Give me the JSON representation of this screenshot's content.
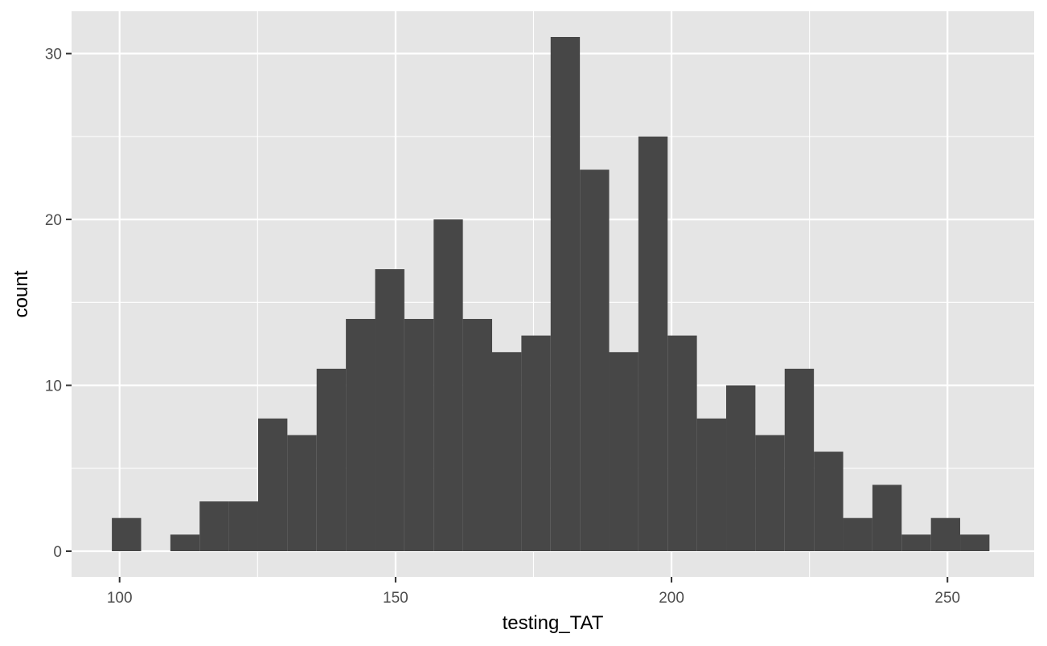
{
  "chart_data": {
    "type": "bar",
    "subtype": "histogram",
    "xlabel": "testing_TAT",
    "ylabel": "count",
    "xlim": [
      91.3,
      265.7
    ],
    "ylim": [
      -1.55,
      32.55
    ],
    "x_ticks": [
      100,
      150,
      200,
      250
    ],
    "y_ticks": [
      0,
      10,
      20,
      30
    ],
    "x_minor_ticks": [
      125,
      175,
      225
    ],
    "y_minor_ticks": [
      5,
      15,
      25
    ],
    "grid": true,
    "legend": "none",
    "bin_width": 5.3,
    "bins": [
      {
        "x0": 98.6,
        "x1": 103.9,
        "count": 2
      },
      {
        "x0": 103.9,
        "x1": 109.2,
        "count": 0
      },
      {
        "x0": 109.2,
        "x1": 114.5,
        "count": 1
      },
      {
        "x0": 114.5,
        "x1": 119.8,
        "count": 3
      },
      {
        "x0": 119.8,
        "x1": 125.1,
        "count": 3
      },
      {
        "x0": 125.1,
        "x1": 130.4,
        "count": 8
      },
      {
        "x0": 130.4,
        "x1": 135.7,
        "count": 7
      },
      {
        "x0": 135.7,
        "x1": 141.0,
        "count": 11
      },
      {
        "x0": 141.0,
        "x1": 146.3,
        "count": 14
      },
      {
        "x0": 146.3,
        "x1": 151.6,
        "count": 17
      },
      {
        "x0": 151.6,
        "x1": 156.9,
        "count": 14
      },
      {
        "x0": 156.9,
        "x1": 162.2,
        "count": 20
      },
      {
        "x0": 162.2,
        "x1": 167.5,
        "count": 14
      },
      {
        "x0": 167.5,
        "x1": 172.8,
        "count": 12
      },
      {
        "x0": 172.8,
        "x1": 178.1,
        "count": 13
      },
      {
        "x0": 178.1,
        "x1": 183.4,
        "count": 31
      },
      {
        "x0": 183.4,
        "x1": 188.7,
        "count": 23
      },
      {
        "x0": 188.7,
        "x1": 194.0,
        "count": 12
      },
      {
        "x0": 194.0,
        "x1": 199.3,
        "count": 25
      },
      {
        "x0": 199.3,
        "x1": 204.6,
        "count": 13
      },
      {
        "x0": 204.6,
        "x1": 209.9,
        "count": 8
      },
      {
        "x0": 209.9,
        "x1": 215.2,
        "count": 10
      },
      {
        "x0": 215.2,
        "x1": 220.5,
        "count": 7
      },
      {
        "x0": 220.5,
        "x1": 225.8,
        "count": 11
      },
      {
        "x0": 225.8,
        "x1": 231.1,
        "count": 6
      },
      {
        "x0": 231.1,
        "x1": 236.4,
        "count": 2
      },
      {
        "x0": 236.4,
        "x1": 241.7,
        "count": 4
      },
      {
        "x0": 241.7,
        "x1": 247.0,
        "count": 1
      },
      {
        "x0": 247.0,
        "x1": 252.3,
        "count": 2
      },
      {
        "x0": 252.3,
        "x1": 257.6,
        "count": 1
      }
    ],
    "colors": {
      "panel_background": "#e5e5e5",
      "grid": "#ffffff",
      "bar_fill": "#474747",
      "tick_text": "#4d4d4d",
      "tick_mark": "#333333",
      "title_text": "#000000"
    }
  }
}
